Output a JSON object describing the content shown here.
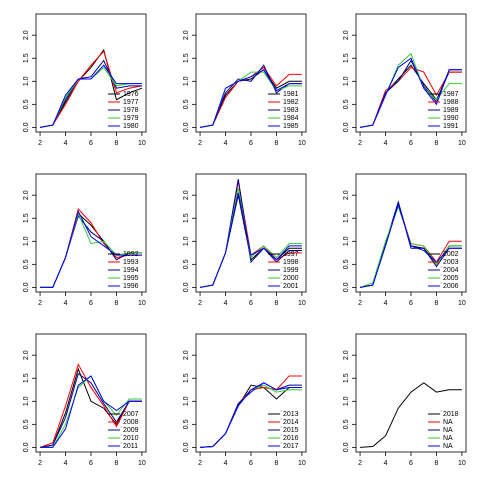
{
  "chart_data": [
    {
      "type": "line",
      "x": [
        2,
        3,
        4,
        5,
        6,
        7,
        8,
        9,
        10
      ],
      "xlim": [
        1.68,
        10.32
      ],
      "ylim": [
        -0.1,
        2.46
      ],
      "xticks": [
        2,
        4,
        6,
        8,
        10
      ],
      "yticks": [
        {
          "value": 0,
          "label": "0.0"
        },
        {
          "value": 0.5,
          "label": "0.5"
        },
        {
          "value": 1,
          "label": "1.0"
        },
        {
          "value": 1.5,
          "label": "1.5"
        },
        {
          "value": 2,
          "label": "2.0"
        }
      ],
      "legend": "bottomright",
      "series": [
        {
          "name": "1976",
          "color": "#000000",
          "values": [
            0,
            0.05,
            0.55,
            1.0,
            1.3,
            1.68,
            0.6,
            0.75,
            0.85
          ]
        },
        {
          "name": "1977",
          "color": "#ff0000",
          "values": [
            0,
            0.05,
            0.5,
            1.0,
            1.35,
            1.65,
            0.75,
            0.85,
            0.9
          ]
        },
        {
          "name": "1978",
          "color": "#00008b",
          "values": [
            0,
            0.05,
            0.6,
            1.05,
            1.1,
            1.45,
            0.85,
            0.9,
            0.9
          ]
        },
        {
          "name": "1979",
          "color": "#32cd32",
          "values": [
            0,
            0.05,
            0.65,
            1.05,
            1.05,
            1.3,
            0.9,
            0.95,
            0.95
          ]
        },
        {
          "name": "1980",
          "color": "#0000ff",
          "values": [
            0,
            0.05,
            0.7,
            1.05,
            1.05,
            1.35,
            0.95,
            0.95,
            0.95
          ]
        }
      ]
    },
    {
      "type": "line",
      "x": [
        2,
        3,
        4,
        5,
        6,
        7,
        8,
        9,
        10
      ],
      "xlim": [
        1.68,
        10.32
      ],
      "ylim": [
        -0.1,
        2.46
      ],
      "xticks": [
        2,
        4,
        6,
        8,
        10
      ],
      "yticks": [
        {
          "value": 0,
          "label": "0.0"
        },
        {
          "value": 0.5,
          "label": "0.5"
        },
        {
          "value": 1,
          "label": "1.0"
        },
        {
          "value": 1.5,
          "label": "1.5"
        },
        {
          "value": 2,
          "label": "2.0"
        }
      ],
      "legend": "bottomright",
      "series": [
        {
          "name": "1981",
          "color": "#000000",
          "values": [
            0,
            0.05,
            0.7,
            1.0,
            1.05,
            1.25,
            0.85,
            1.0,
            1.0
          ]
        },
        {
          "name": "1982",
          "color": "#ff0000",
          "values": [
            0,
            0.05,
            0.65,
            1.0,
            1.1,
            1.3,
            0.9,
            1.15,
            1.15
          ]
        },
        {
          "name": "1983",
          "color": "#00008b",
          "values": [
            0,
            0.05,
            0.75,
            1.05,
            1.0,
            1.35,
            0.75,
            0.95,
            0.95
          ]
        },
        {
          "name": "1984",
          "color": "#32cd32",
          "values": [
            0,
            0.05,
            0.85,
            1.0,
            1.2,
            1.2,
            0.8,
            0.9,
            0.9
          ]
        },
        {
          "name": "1985",
          "color": "#0000ff",
          "values": [
            0,
            0.05,
            0.85,
            1.0,
            1.1,
            1.25,
            0.8,
            0.95,
            0.95
          ]
        }
      ]
    },
    {
      "type": "line",
      "x": [
        2,
        3,
        4,
        5,
        6,
        7,
        8,
        9,
        10
      ],
      "xlim": [
        1.68,
        10.32
      ],
      "ylim": [
        -0.1,
        2.46
      ],
      "xticks": [
        2,
        4,
        6,
        8,
        10
      ],
      "yticks": [
        {
          "value": 0,
          "label": "0.0"
        },
        {
          "value": 0.5,
          "label": "0.5"
        },
        {
          "value": 1,
          "label": "1.0"
        },
        {
          "value": 1.5,
          "label": "1.5"
        },
        {
          "value": 2,
          "label": "2.0"
        }
      ],
      "legend": "bottomright",
      "series": [
        {
          "name": "1987",
          "color": "#000000",
          "values": [
            0,
            0.05,
            0.75,
            1.05,
            1.35,
            0.95,
            0.6,
            1.2,
            1.2
          ]
        },
        {
          "name": "1988",
          "color": "#ff0000",
          "values": [
            0,
            0.05,
            0.8,
            1.0,
            1.3,
            1.2,
            0.7,
            1.2,
            1.2
          ]
        },
        {
          "name": "1989",
          "color": "#00008b",
          "values": [
            0,
            0.05,
            0.75,
            1.0,
            1.45,
            0.9,
            0.55,
            1.25,
            1.25
          ]
        },
        {
          "name": "1990",
          "color": "#32cd32",
          "values": [
            0,
            0.05,
            0.7,
            1.35,
            1.6,
            0.85,
            0.6,
            0.95,
            0.95
          ]
        },
        {
          "name": "1991",
          "color": "#0000ff",
          "values": [
            0,
            0.05,
            0.7,
            1.3,
            1.5,
            0.85,
            0.5,
            1.25,
            1.25
          ]
        }
      ]
    },
    {
      "type": "line",
      "x": [
        2,
        3,
        4,
        5,
        6,
        7,
        8,
        9,
        10
      ],
      "xlim": [
        1.68,
        10.32
      ],
      "ylim": [
        -0.1,
        2.46
      ],
      "xticks": [
        2,
        4,
        6,
        8,
        10
      ],
      "yticks": [
        {
          "value": 0,
          "label": "0.0"
        },
        {
          "value": 0.5,
          "label": "0.5"
        },
        {
          "value": 1,
          "label": "1.0"
        },
        {
          "value": 1.5,
          "label": "1.5"
        },
        {
          "value": 2,
          "label": "2.0"
        }
      ],
      "legend": "bottomright",
      "series": [
        {
          "name": "1992",
          "color": "#000000",
          "values": [
            0,
            0,
            0.65,
            1.6,
            1.35,
            1.0,
            0.6,
            0.75,
            0.75
          ]
        },
        {
          "name": "1993",
          "color": "#ff0000",
          "values": [
            0,
            0,
            0.65,
            1.7,
            1.4,
            0.95,
            0.65,
            0.7,
            0.7
          ]
        },
        {
          "name": "1994",
          "color": "#00008b",
          "values": [
            0,
            0,
            0.65,
            1.55,
            1.2,
            1.0,
            0.6,
            0.75,
            0.75
          ]
        },
        {
          "name": "1995",
          "color": "#32cd32",
          "values": [
            0,
            0,
            0.65,
            1.6,
            0.95,
            1.0,
            0.7,
            0.75,
            0.75
          ]
        },
        {
          "name": "1996",
          "color": "#0000ff",
          "values": [
            0,
            0,
            0.65,
            1.65,
            1.1,
            0.9,
            0.7,
            0.7,
            0.7
          ]
        }
      ]
    },
    {
      "type": "line",
      "x": [
        2,
        3,
        4,
        5,
        6,
        7,
        8,
        9,
        10
      ],
      "xlim": [
        1.68,
        10.32
      ],
      "ylim": [
        -0.1,
        2.46
      ],
      "xticks": [
        2,
        4,
        6,
        8,
        10
      ],
      "yticks": [
        {
          "value": 0,
          "label": "0.0"
        },
        {
          "value": 0.5,
          "label": "0.5"
        },
        {
          "value": 1,
          "label": "1.0"
        },
        {
          "value": 1.5,
          "label": "1.5"
        },
        {
          "value": 2,
          "label": "2.0"
        }
      ],
      "legend": "bottomright",
      "series": [
        {
          "name": "1997",
          "color": "#000000",
          "values": [
            0,
            0.05,
            0.75,
            2.0,
            0.6,
            0.85,
            0.6,
            0.85,
            0.85
          ]
        },
        {
          "name": "1998",
          "color": "#ff0000",
          "values": [
            0,
            0.05,
            0.75,
            2.3,
            0.7,
            0.9,
            0.6,
            0.75,
            0.75
          ]
        },
        {
          "name": "1999",
          "color": "#00008b",
          "values": [
            0,
            0.05,
            0.75,
            2.35,
            0.55,
            0.85,
            0.55,
            0.8,
            0.8
          ]
        },
        {
          "name": "2000",
          "color": "#32cd32",
          "values": [
            0,
            0.05,
            0.75,
            2.15,
            0.65,
            0.9,
            0.65,
            0.95,
            0.95
          ]
        },
        {
          "name": "2001",
          "color": "#0000ff",
          "values": [
            0,
            0.05,
            0.75,
            2.05,
            0.7,
            0.85,
            0.6,
            0.9,
            0.9
          ]
        }
      ]
    },
    {
      "type": "line",
      "x": [
        2,
        3,
        4,
        5,
        6,
        7,
        8,
        9,
        10
      ],
      "xlim": [
        1.68,
        10.32
      ],
      "ylim": [
        -0.1,
        2.46
      ],
      "xticks": [
        2,
        4,
        6,
        8,
        10
      ],
      "yticks": [
        {
          "value": 0,
          "label": "0.0"
        },
        {
          "value": 0.5,
          "label": "0.5"
        },
        {
          "value": 1,
          "label": "1.0"
        },
        {
          "value": 1.5,
          "label": "1.5"
        },
        {
          "value": 2,
          "label": "2.0"
        }
      ],
      "legend": "bottomright",
      "series": [
        {
          "name": "2002",
          "color": "#000000",
          "values": [
            0,
            0.05,
            0.95,
            1.85,
            0.9,
            0.85,
            0.5,
            0.9,
            0.9
          ]
        },
        {
          "name": "2003",
          "color": "#ff0000",
          "values": [
            0,
            0.05,
            0.95,
            1.8,
            0.95,
            0.9,
            0.55,
            1.0,
            1.0
          ]
        },
        {
          "name": "2004",
          "color": "#00008b",
          "values": [
            0,
            0.05,
            0.95,
            1.85,
            0.85,
            0.85,
            0.45,
            0.85,
            0.85
          ]
        },
        {
          "name": "2005",
          "color": "#32cd32",
          "values": [
            0,
            0.1,
            1.0,
            1.75,
            0.95,
            0.9,
            0.5,
            0.9,
            0.9
          ]
        },
        {
          "name": "2006",
          "color": "#0000ff",
          "values": [
            0,
            0.05,
            0.9,
            1.8,
            0.9,
            0.8,
            0.55,
            0.85,
            0.85
          ]
        }
      ]
    },
    {
      "type": "line",
      "x": [
        2,
        3,
        4,
        5,
        6,
        7,
        8,
        9,
        10
      ],
      "xlim": [
        1.68,
        10.32
      ],
      "ylim": [
        -0.1,
        2.46
      ],
      "xticks": [
        2,
        4,
        6,
        8,
        10
      ],
      "yticks": [
        {
          "value": 0,
          "label": "0.0"
        },
        {
          "value": 0.5,
          "label": "0.5"
        },
        {
          "value": 1,
          "label": "1.0"
        },
        {
          "value": 1.5,
          "label": "1.5"
        },
        {
          "value": 2,
          "label": "2.0"
        }
      ],
      "legend": "bottomright",
      "series": [
        {
          "name": "2007",
          "color": "#000000",
          "values": [
            0,
            0.05,
            0.75,
            1.7,
            1.0,
            0.85,
            0.5,
            1.0,
            1.0
          ]
        },
        {
          "name": "2008",
          "color": "#ff0000",
          "values": [
            0,
            0.1,
            0.9,
            1.8,
            1.3,
            0.9,
            0.45,
            1.0,
            1.0
          ]
        },
        {
          "name": "2009",
          "color": "#00008b",
          "values": [
            0,
            0.05,
            0.65,
            1.6,
            1.4,
            0.95,
            0.55,
            1.0,
            1.0
          ]
        },
        {
          "name": "2010",
          "color": "#32cd32",
          "values": [
            0,
            0,
            0.5,
            1.3,
            1.55,
            1.0,
            0.7,
            1.05,
            1.05
          ]
        },
        {
          "name": "2011",
          "color": "#0000ff",
          "values": [
            0,
            0,
            0.4,
            1.35,
            1.55,
            1.0,
            0.8,
            1.0,
            1.0
          ]
        }
      ]
    },
    {
      "type": "line",
      "x": [
        2,
        3,
        4,
        5,
        6,
        7,
        8,
        9,
        10
      ],
      "xlim": [
        1.68,
        10.32
      ],
      "ylim": [
        -0.1,
        2.46
      ],
      "xticks": [
        2,
        4,
        6,
        8,
        10
      ],
      "yticks": [
        {
          "value": 0,
          "label": "0.0"
        },
        {
          "value": 0.5,
          "label": "0.5"
        },
        {
          "value": 1,
          "label": "1.0"
        },
        {
          "value": 1.5,
          "label": "1.5"
        },
        {
          "value": 2,
          "label": "2.0"
        }
      ],
      "legend": "bottomright",
      "series": [
        {
          "name": "2013",
          "color": "#000000",
          "values": [
            0,
            0.02,
            0.3,
            0.9,
            1.35,
            1.3,
            1.05,
            1.3,
            1.3
          ]
        },
        {
          "name": "2014",
          "color": "#ff0000",
          "values": [
            0,
            0.02,
            0.3,
            0.95,
            1.25,
            1.3,
            1.25,
            1.55,
            1.55
          ]
        },
        {
          "name": "2015",
          "color": "#00008b",
          "values": [
            0,
            0.02,
            0.3,
            0.95,
            1.2,
            1.4,
            1.25,
            1.35,
            1.35
          ]
        },
        {
          "name": "2016",
          "color": "#32cd32",
          "values": [
            0,
            0.02,
            0.3,
            0.9,
            1.25,
            1.35,
            1.2,
            1.25,
            1.25
          ]
        },
        {
          "name": "2017",
          "color": "#0000ff",
          "values": [
            0,
            0.02,
            0.3,
            0.9,
            1.25,
            1.4,
            1.25,
            1.3,
            1.3
          ]
        }
      ]
    },
    {
      "type": "line",
      "x": [
        2,
        3,
        4,
        5,
        6,
        7,
        8,
        9,
        10
      ],
      "xlim": [
        1.68,
        10.32
      ],
      "ylim": [
        -0.1,
        2.46
      ],
      "xticks": [
        2,
        4,
        6,
        8,
        10
      ],
      "yticks": [
        {
          "value": 0,
          "label": "0.0"
        },
        {
          "value": 0.5,
          "label": "0.5"
        },
        {
          "value": 1,
          "label": "1.0"
        },
        {
          "value": 1.5,
          "label": "1.5"
        },
        {
          "value": 2,
          "label": "2.0"
        }
      ],
      "legend": "bottomright",
      "series": [
        {
          "name": "2018",
          "color": "#000000",
          "values": [
            0,
            0.02,
            0.25,
            0.85,
            1.2,
            1.4,
            1.2,
            1.25,
            1.25
          ]
        },
        {
          "name": "NA",
          "color": "#ff0000",
          "values": [
            null,
            null,
            null,
            null,
            null,
            null,
            null,
            null,
            null
          ]
        },
        {
          "name": "NA",
          "color": "#00008b",
          "values": [
            null,
            null,
            null,
            null,
            null,
            null,
            null,
            null,
            null
          ]
        },
        {
          "name": "NA",
          "color": "#32cd32",
          "values": [
            null,
            null,
            null,
            null,
            null,
            null,
            null,
            null,
            null
          ]
        },
        {
          "name": "NA",
          "color": "#0000ff",
          "values": [
            null,
            null,
            null,
            null,
            null,
            null,
            null,
            null,
            null
          ]
        }
      ]
    }
  ]
}
